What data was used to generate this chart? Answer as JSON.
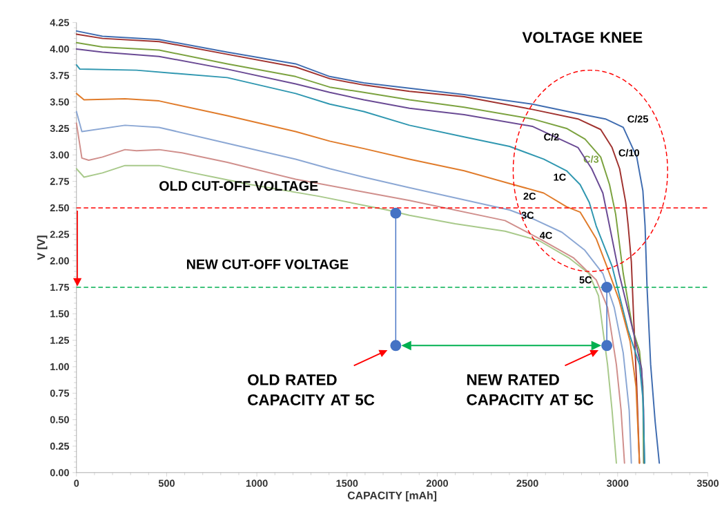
{
  "chart_data": {
    "type": "line",
    "xlabel": "CAPACITY [mAh]",
    "ylabel": "V [V]",
    "xlim": [
      0,
      3500
    ],
    "ylim": [
      0,
      4.25
    ],
    "xticks": [
      0,
      500,
      1000,
      1500,
      2000,
      2500,
      3000,
      3500
    ],
    "yticks": [
      {
        "value": 0,
        "label": "0.00"
      },
      {
        "value": 0.25,
        "label": "0.25"
      },
      {
        "value": 0.5,
        "label": "0.50"
      },
      {
        "value": 0.75,
        "label": "0.75"
      },
      {
        "value": 1,
        "label": "1.00"
      },
      {
        "value": 1.25,
        "label": "1.25"
      },
      {
        "value": 1.5,
        "label": "1.50"
      },
      {
        "value": 1.75,
        "label": "1.75"
      },
      {
        "value": 2,
        "label": "2.00"
      },
      {
        "value": 2.25,
        "label": "2.25"
      },
      {
        "value": 2.5,
        "label": "2.50"
      },
      {
        "value": 2.75,
        "label": "2.75"
      },
      {
        "value": 3,
        "label": "3.00"
      },
      {
        "value": 3.25,
        "label": "3.25"
      },
      {
        "value": 3.5,
        "label": "3.50"
      },
      {
        "value": 3.75,
        "label": "3.75"
      },
      {
        "value": 4,
        "label": "4.00"
      },
      {
        "value": 4.25,
        "label": "4.25"
      }
    ],
    "grid": false,
    "legend": false,
    "marker": "none",
    "line_style": "solid",
    "series": [
      {
        "name": "C/25",
        "color": "#3f6cb0",
        "x": [
          0,
          144,
          458,
          836,
          1215,
          1404,
          1593,
          1846,
          2149,
          2527,
          2780,
          2932,
          3031,
          3106,
          3140,
          3152,
          3163,
          3183,
          3208,
          3231
        ],
        "values": [
          4.17,
          4.12,
          4.09,
          3.97,
          3.86,
          3.74,
          3.68,
          3.63,
          3.57,
          3.48,
          3.39,
          3.34,
          3.26,
          2.98,
          2.66,
          2.33,
          1.75,
          1.02,
          0.48,
          0.09
        ]
      },
      {
        "name": "C/10",
        "color": "#a0322f",
        "x": [
          0,
          144,
          458,
          836,
          1215,
          1404,
          1593,
          1846,
          2149,
          2527,
          2780,
          2906,
          2969,
          3011,
          3045,
          3058,
          3076,
          3089,
          3106,
          3121
        ],
        "values": [
          4.14,
          4.1,
          4.07,
          3.95,
          3.83,
          3.72,
          3.66,
          3.6,
          3.55,
          3.43,
          3.34,
          3.24,
          3.07,
          2.87,
          2.55,
          2.34,
          1.99,
          1.45,
          0.81,
          0.09
        ]
      },
      {
        "name": "C/3",
        "color": "#7ba23f",
        "x": [
          0,
          144,
          458,
          836,
          1215,
          1404,
          1593,
          1846,
          2149,
          2527,
          2717,
          2819,
          2906,
          2955,
          2989,
          3031,
          3084,
          3121,
          3140,
          3144
        ],
        "values": [
          4.06,
          4.02,
          3.99,
          3.86,
          3.74,
          3.64,
          3.59,
          3.52,
          3.45,
          3.34,
          3.25,
          3.15,
          2.98,
          2.72,
          2.44,
          1.88,
          1.35,
          1.15,
          0.81,
          0.09
        ]
      },
      {
        "name": "C/2",
        "color": "#6a4a94",
        "x": [
          0,
          144,
          458,
          836,
          1215,
          1404,
          1593,
          1846,
          2149,
          2527,
          2679,
          2780,
          2856,
          2918,
          2955,
          3008,
          3084,
          3133,
          3144,
          3148
        ],
        "values": [
          4.0,
          3.97,
          3.93,
          3.81,
          3.67,
          3.59,
          3.52,
          3.44,
          3.38,
          3.27,
          3.15,
          3.07,
          2.87,
          2.64,
          2.33,
          1.88,
          1.35,
          0.98,
          0.59,
          0.09
        ]
      },
      {
        "name": "1C",
        "color": "#2f97b0",
        "x": [
          0,
          19,
          333,
          836,
          1215,
          1404,
          1593,
          1846,
          2149,
          2401,
          2590,
          2717,
          2792,
          2843,
          2881,
          2969,
          3057,
          3121,
          3140,
          3150
        ],
        "values": [
          3.85,
          3.81,
          3.8,
          3.73,
          3.58,
          3.48,
          3.41,
          3.28,
          3.17,
          3.08,
          2.96,
          2.85,
          2.72,
          2.55,
          2.33,
          1.95,
          1.35,
          1.02,
          0.7,
          0.09
        ]
      },
      {
        "name": "2C",
        "color": "#e07b2a",
        "x": [
          0,
          42,
          269,
          458,
          836,
          1215,
          1404,
          1593,
          1846,
          2149,
          2401,
          2590,
          2717,
          2792,
          2881,
          2944,
          3008,
          3069,
          3102,
          3121
        ],
        "values": [
          3.58,
          3.52,
          3.53,
          3.51,
          3.37,
          3.22,
          3.13,
          3.06,
          2.96,
          2.85,
          2.73,
          2.64,
          2.51,
          2.46,
          2.21,
          1.93,
          1.63,
          1.24,
          0.81,
          0.09
        ]
      },
      {
        "name": "3C",
        "color": "#8ba7d4",
        "x": [
          0,
          30,
          269,
          458,
          836,
          1215,
          1404,
          1593,
          1846,
          2401,
          2527,
          2691,
          2818,
          2918,
          2981,
          3031,
          3064,
          3076
        ],
        "values": [
          3.41,
          3.22,
          3.28,
          3.26,
          3.11,
          2.96,
          2.87,
          2.79,
          2.69,
          2.48,
          2.4,
          2.27,
          2.1,
          1.88,
          1.56,
          1.13,
          0.59,
          0.09
        ]
      },
      {
        "name": "4C",
        "color": "#d08f8c",
        "x": [
          0,
          30,
          68,
          144,
          269,
          333,
          458,
          585,
          836,
          1215,
          1593,
          1846,
          2376,
          2565,
          2754,
          2881,
          2944,
          2993,
          3019,
          3038
        ],
        "values": [
          3.3,
          2.97,
          2.95,
          2.98,
          3.05,
          3.04,
          3.05,
          3.02,
          2.93,
          2.77,
          2.65,
          2.57,
          2.38,
          2.21,
          2.03,
          1.82,
          1.56,
          1.02,
          0.59,
          0.09
        ]
      },
      {
        "name": "5C",
        "color": "#a8c98a",
        "x": [
          0,
          42,
          144,
          269,
          458,
          647,
          965,
          1343,
          1722,
          1846,
          2100,
          2376,
          2565,
          2728,
          2841,
          2894,
          2918,
          2944,
          2969,
          2993
        ],
        "values": [
          2.87,
          2.79,
          2.83,
          2.9,
          2.9,
          2.83,
          2.72,
          2.61,
          2.48,
          2.43,
          2.35,
          2.28,
          2.19,
          2.03,
          1.88,
          1.67,
          1.35,
          1.02,
          0.59,
          0.09
        ]
      },
      {
        "color": "#4472c4",
        "marker": "circle",
        "x": [
          1770,
          1770
        ],
        "values": [
          2.45,
          1.2
        ]
      },
      {
        "color": "#4472c4",
        "marker": "circle",
        "x": [
          2940,
          2940
        ],
        "values": [
          1.75,
          1.2
        ]
      }
    ],
    "ref_lines": [
      {
        "axis": "y",
        "value": 2.5,
        "label": "OLD CUT-OFF VOLTAGE",
        "color": "#ff0000",
        "line_style": "dashed"
      },
      {
        "axis": "y",
        "value": 1.75,
        "label": "NEW CUT-OFF VOLTAGE",
        "color": "#00b050",
        "line_style": "dashed"
      }
    ],
    "annotations": [
      "VOLTAGE KNEE",
      "OLD RATED CAPACITY AT 5C",
      "NEW RATED CAPACITY AT 5C"
    ]
  }
}
